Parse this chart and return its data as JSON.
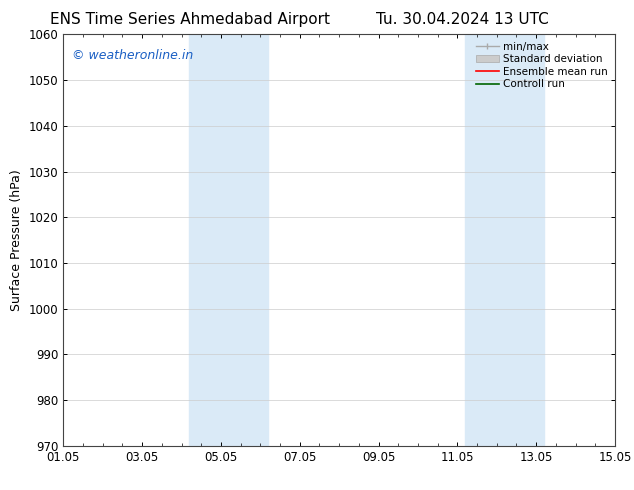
{
  "title_left": "ENS Time Series Ahmedabad Airport",
  "title_right": "Tu. 30.04.2024 13 UTC",
  "ylabel": "Surface Pressure (hPa)",
  "ylim": [
    970,
    1060
  ],
  "yticks": [
    970,
    980,
    990,
    1000,
    1010,
    1020,
    1030,
    1040,
    1050,
    1060
  ],
  "xlim": [
    0,
    14
  ],
  "xtick_positions": [
    0,
    2,
    4,
    6,
    8,
    10,
    12,
    14
  ],
  "xtick_labels": [
    "01.05",
    "03.05",
    "05.05",
    "07.05",
    "09.05",
    "11.05",
    "13.05",
    "15.05"
  ],
  "shaded_bands": [
    {
      "xmin": 3.2,
      "xmax": 5.2,
      "color": "#daeaf7"
    },
    {
      "xmin": 10.2,
      "xmax": 12.2,
      "color": "#daeaf7"
    }
  ],
  "watermark": "© weatheronline.in",
  "watermark_color": "#1a5fc4",
  "legend_items": [
    {
      "label": "min/max",
      "color": "#aaaaaa"
    },
    {
      "label": "Standard deviation",
      "color": "#cccccc"
    },
    {
      "label": "Ensemble mean run",
      "color": "red"
    },
    {
      "label": "Controll run",
      "color": "green"
    }
  ],
  "background_color": "#ffffff",
  "plot_bg_color": "#ffffff",
  "grid_color": "#cccccc",
  "title_fontsize": 11,
  "tick_fontsize": 8.5,
  "ylabel_fontsize": 9,
  "watermark_fontsize": 9,
  "legend_fontsize": 7.5
}
